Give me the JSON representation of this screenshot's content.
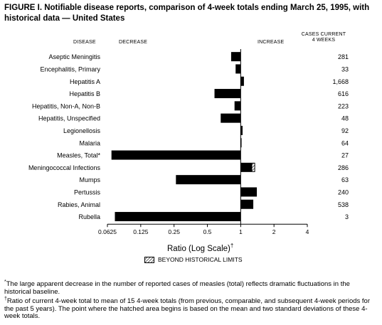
{
  "figure_title": "FIGURE I. Notifiable disease reports, comparison of 4-week totals ending March 25, 1995, with historical data — United States",
  "headers": {
    "disease": "DISEASE",
    "decrease": "DECREASE",
    "increase": "INCREASE",
    "cases_line1": "CASES CURRENT",
    "cases_line2": "4 WEEKS"
  },
  "axis": {
    "label": "Ratio (Log Scale)",
    "label_mark": "†"
  },
  "legend": {
    "label": "BEYOND HISTORICAL LIMITS"
  },
  "footnotes": {
    "f1_mark": "*",
    "f1": "The large apparent decrease in the number of reported cases of measles (total) reflects dramatic fluctuations in the historical baseline.",
    "f2_mark": "†",
    "f2": "Ratio of current 4-week total to mean of 15 4-week totals (from previous, comparable, and subsequent 4-week periods for the past 5 years). The point where the hatched area begins is based on the mean and two standard deviations of these 4-week totals."
  },
  "chart_data": {
    "type": "bar",
    "orientation": "horizontal",
    "xscale": "log2",
    "xlim": [
      0.0625,
      4
    ],
    "reference_line": 1,
    "xticks": [
      0.0625,
      0.125,
      0.25,
      0.5,
      1,
      2,
      4
    ],
    "xtick_labels": [
      "0.0625",
      "0.125",
      "0.25",
      "0.5",
      "1",
      "2",
      "4"
    ],
    "colors": {
      "bar": "#000000",
      "hatch_background": "#ffffff"
    },
    "categories": [
      "Aseptic Meningitis",
      "Encephalitis, Primary",
      "Hepatitis A",
      "Hepatitis B",
      "Hepatitis, Non-A, Non-B",
      "Hepatitis, Unspecified",
      "Legionellosis",
      "Malaria",
      "Measles, Total*",
      "Meningococcal Infections",
      "Mumps",
      "Pertussis",
      "Rabies, Animal",
      "Rubella"
    ],
    "ratios": [
      0.82,
      0.9,
      1.07,
      0.58,
      0.88,
      0.66,
      1.04,
      1.0,
      0.068,
      1.35,
      0.26,
      1.4,
      1.3,
      0.073
    ],
    "beyond_limits_from": [
      null,
      null,
      null,
      null,
      null,
      null,
      null,
      null,
      null,
      1.27,
      null,
      null,
      null,
      null
    ],
    "cases_current_4_weeks": [
      "281",
      "33",
      "1,668",
      "616",
      "223",
      "48",
      "92",
      "64",
      "27",
      "286",
      "63",
      "240",
      "538",
      "3"
    ]
  }
}
